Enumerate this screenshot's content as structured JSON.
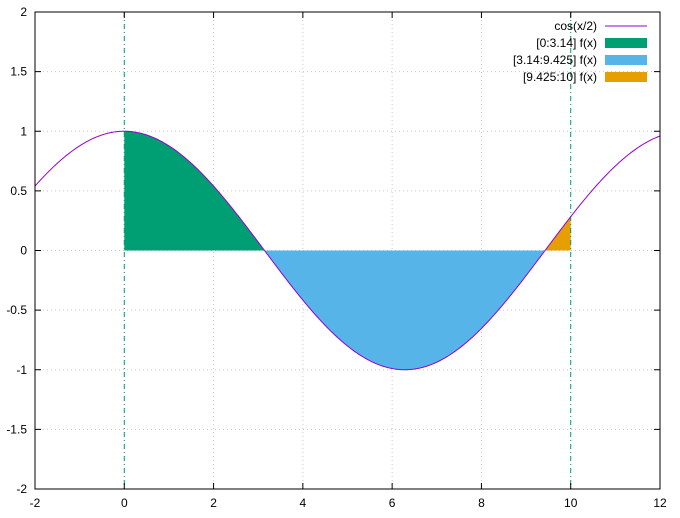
{
  "chart_data": {
    "type": "line",
    "title": "",
    "xlabel": "",
    "ylabel": "",
    "xlim": [
      -2,
      12
    ],
    "ylim": [
      -2,
      2
    ],
    "x_ticks": [
      "-2",
      "0",
      "2",
      "4",
      "6",
      "8",
      "10",
      "12"
    ],
    "y_ticks": [
      "-2",
      "-1.5",
      "-1",
      "-0.5",
      "0",
      "0.5",
      "1",
      "1.5",
      "2"
    ],
    "grid": true,
    "legend_position": "top-right",
    "curve": {
      "name": "cos(x/2)",
      "color": "#9400d3",
      "x_range": [
        -2,
        12
      ]
    },
    "filled_regions": [
      {
        "name": "[0:3.14] f(x)",
        "x_range": [
          0,
          3.14
        ],
        "color": "#009e73"
      },
      {
        "name": "[3.14:9.425] f(x)",
        "x_range": [
          3.14,
          9.425
        ],
        "color": "#56b4e9"
      },
      {
        "name": "[9.425:10] f(x)",
        "x_range": [
          9.425,
          10
        ],
        "color": "#e69f00"
      }
    ],
    "vertical_lines": [
      {
        "x": 0,
        "color": "#009e73"
      },
      {
        "x": 10,
        "color": "#009e73"
      }
    ]
  }
}
